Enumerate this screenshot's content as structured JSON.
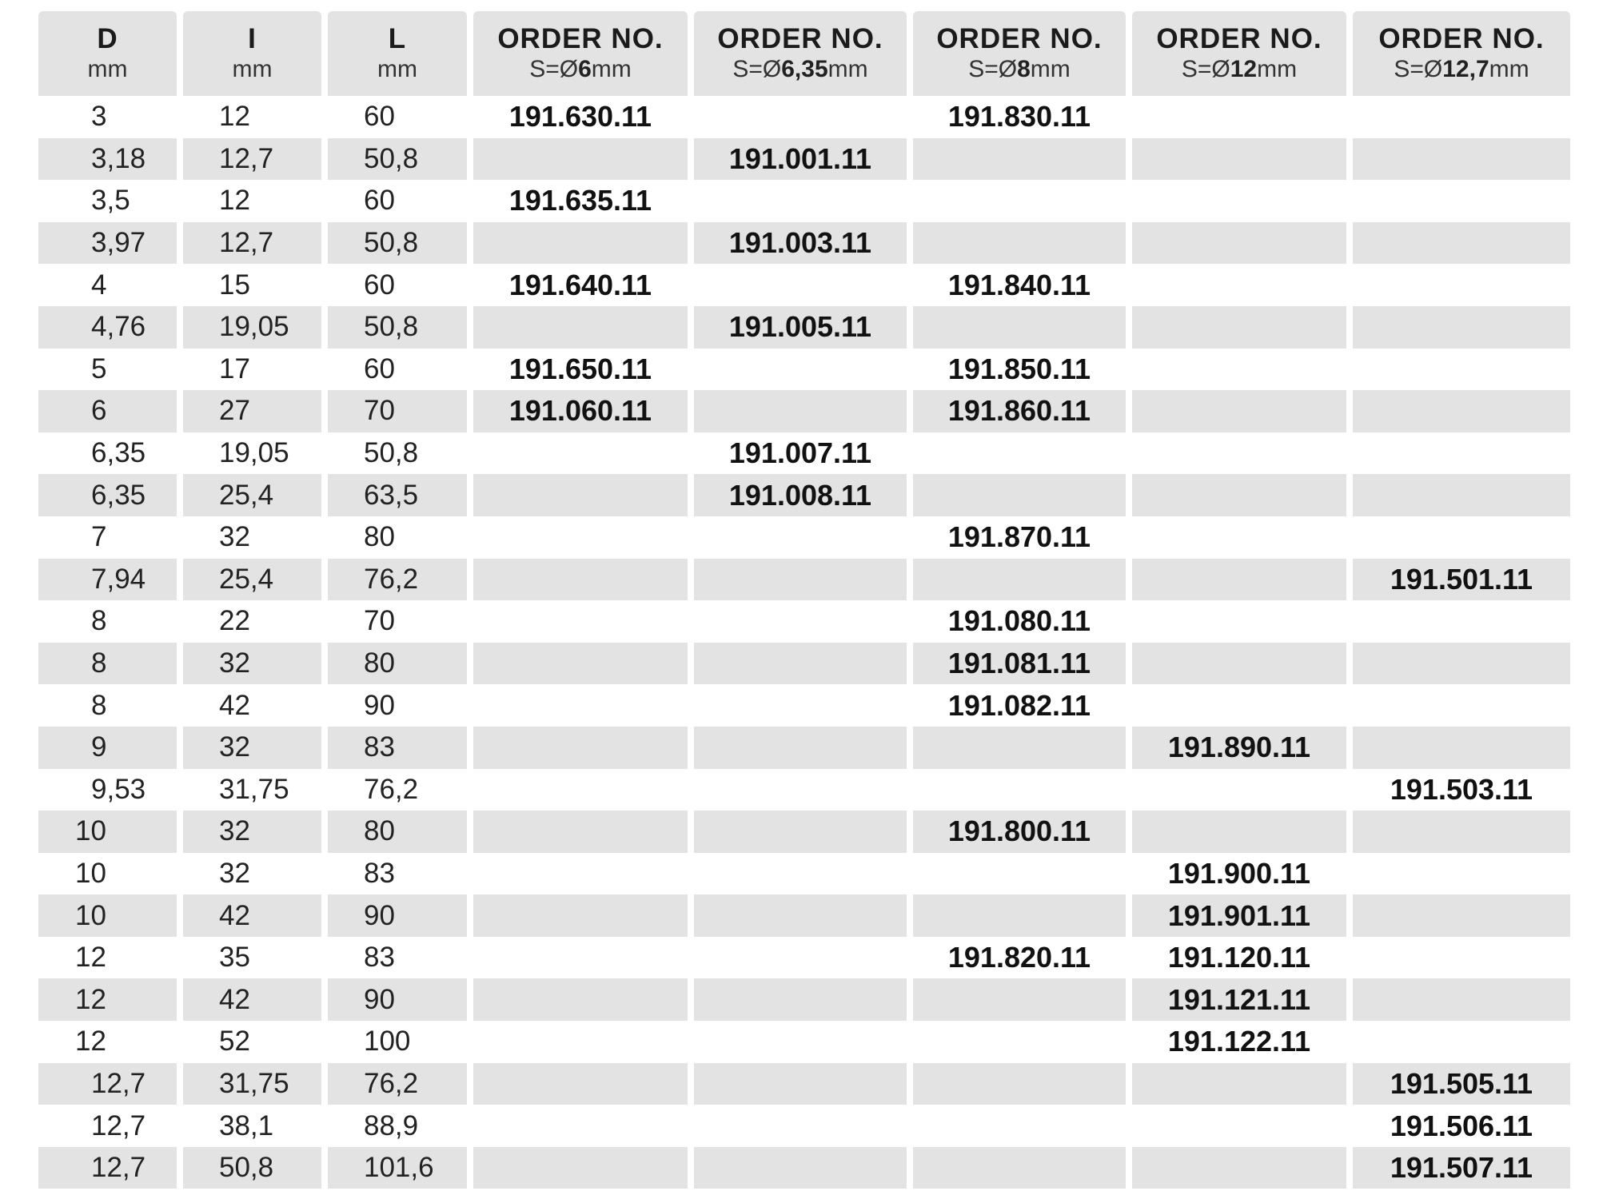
{
  "header": {
    "cols": [
      {
        "title": "D",
        "sub_pre": "mm",
        "sub_bold": "",
        "sub_post": ""
      },
      {
        "title": "I",
        "sub_pre": "mm",
        "sub_bold": "",
        "sub_post": ""
      },
      {
        "title": "L",
        "sub_pre": "mm",
        "sub_bold": "",
        "sub_post": ""
      },
      {
        "title": "ORDER NO.",
        "sub_pre": "S=Ø",
        "sub_bold": "6",
        "sub_post": "mm"
      },
      {
        "title": "ORDER NO.",
        "sub_pre": "S=Ø",
        "sub_bold": "6,35",
        "sub_post": "mm"
      },
      {
        "title": "ORDER NO.",
        "sub_pre": "S=Ø",
        "sub_bold": "8",
        "sub_post": "mm"
      },
      {
        "title": "ORDER NO.",
        "sub_pre": "S=Ø",
        "sub_bold": "12",
        "sub_post": "mm"
      },
      {
        "title": "ORDER NO.",
        "sub_pre": "S=Ø",
        "sub_bold": "12,7",
        "sub_post": "mm"
      }
    ]
  },
  "rows": [
    [
      "3",
      "12",
      "60",
      "191.630.11",
      "",
      "191.830.11",
      "",
      ""
    ],
    [
      "3,18",
      "12,7",
      "50,8",
      "",
      "191.001.11",
      "",
      "",
      ""
    ],
    [
      "3,5",
      "12",
      "60",
      "191.635.11",
      "",
      "",
      "",
      ""
    ],
    [
      "3,97",
      "12,7",
      "50,8",
      "",
      "191.003.11",
      "",
      "",
      ""
    ],
    [
      "4",
      "15",
      "60",
      "191.640.11",
      "",
      "191.840.11",
      "",
      ""
    ],
    [
      "4,76",
      "19,05",
      "50,8",
      "",
      "191.005.11",
      "",
      "",
      ""
    ],
    [
      "5",
      "17",
      "60",
      "191.650.11",
      "",
      "191.850.11",
      "",
      ""
    ],
    [
      "6",
      "27",
      "70",
      "191.060.11",
      "",
      "191.860.11",
      "",
      ""
    ],
    [
      "6,35",
      "19,05",
      "50,8",
      "",
      "191.007.11",
      "",
      "",
      ""
    ],
    [
      "6,35",
      "25,4",
      "63,5",
      "",
      "191.008.11",
      "",
      "",
      ""
    ],
    [
      "7",
      "32",
      "80",
      "",
      "",
      "191.870.11",
      "",
      ""
    ],
    [
      "7,94",
      "25,4",
      "76,2",
      "",
      "",
      "",
      "",
      "191.501.11"
    ],
    [
      "8",
      "22",
      "70",
      "",
      "",
      "191.080.11",
      "",
      ""
    ],
    [
      "8",
      "32",
      "80",
      "",
      "",
      "191.081.11",
      "",
      ""
    ],
    [
      "8",
      "42",
      "90",
      "",
      "",
      "191.082.11",
      "",
      ""
    ],
    [
      "9",
      "32",
      "83",
      "",
      "",
      "",
      "191.890.11",
      ""
    ],
    [
      "9,53",
      "31,75",
      "76,2",
      "",
      "",
      "",
      "",
      "191.503.11"
    ],
    [
      "10",
      "32",
      "80",
      "",
      "",
      "191.800.11",
      "",
      ""
    ],
    [
      "10",
      "32",
      "83",
      "",
      "",
      "",
      "191.900.11",
      ""
    ],
    [
      "10",
      "42",
      "90",
      "",
      "",
      "",
      "191.901.11",
      ""
    ],
    [
      "12",
      "35",
      "83",
      "",
      "",
      "191.820.11",
      "191.120.11",
      ""
    ],
    [
      "12",
      "42",
      "90",
      "",
      "",
      "",
      "191.121.11",
      ""
    ],
    [
      "12",
      "52",
      "100",
      "",
      "",
      "",
      "191.122.11",
      ""
    ],
    [
      "12,7",
      "31,75",
      "76,2",
      "",
      "",
      "",
      "",
      "191.505.11"
    ],
    [
      "12,7",
      "38,1",
      "88,9",
      "",
      "",
      "",
      "",
      "191.506.11"
    ],
    [
      "12,7",
      "50,8",
      "101,6",
      "",
      "",
      "",
      "",
      "191.507.11"
    ]
  ]
}
